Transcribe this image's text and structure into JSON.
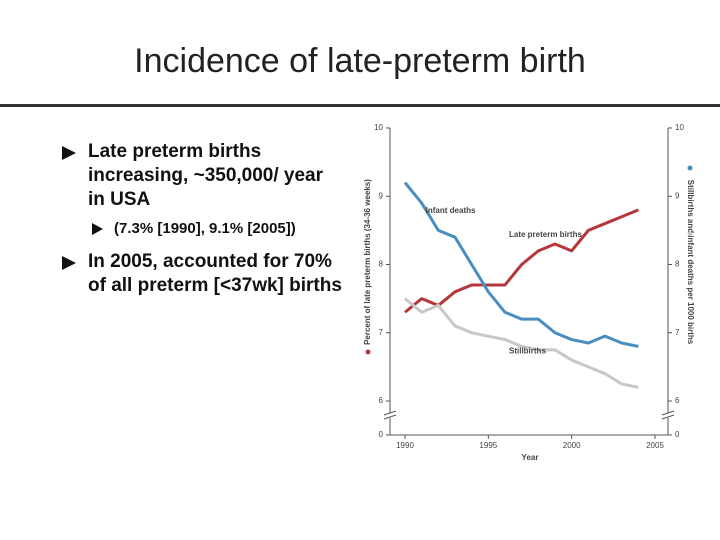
{
  "slide": {
    "title": "Incidence of late-preterm birth",
    "bullets": [
      {
        "text": "Late preterm births increasing, ~350,000/ year in USA",
        "sub": [
          "(7.3% [1990], 9.1% [2005])"
        ]
      },
      {
        "text": "In 2005, accounted for 70% of all preterm [<37wk] births",
        "sub": []
      }
    ]
  },
  "chart_data": {
    "type": "line",
    "xlabel": "Year",
    "ylabel": "Percent of late preterm births (34-36 weeks)",
    "y2label": "Stillbirths and infant deaths per 1000 births",
    "x": [
      1990,
      1991,
      1992,
      1993,
      1994,
      1995,
      1996,
      1997,
      1998,
      1999,
      2000,
      2001,
      2002,
      2003,
      2004
    ],
    "xlim": [
      1990,
      2005
    ],
    "xticks": [
      1990,
      1995,
      2000,
      2005
    ],
    "ylim": [
      6,
      10
    ],
    "yticks": [
      0,
      6,
      7,
      8,
      9,
      10
    ],
    "y2lim": [
      6,
      10
    ],
    "y2ticks": [
      0,
      6,
      7,
      8,
      9,
      10
    ],
    "axis_break": true,
    "series": [
      {
        "name": "Late preterm births",
        "color": "#b5373a",
        "values": [
          7.3,
          7.5,
          7.4,
          7.6,
          7.7,
          7.7,
          7.7,
          8.0,
          8.2,
          8.3,
          8.2,
          8.5,
          8.6,
          8.7,
          8.8
        ]
      },
      {
        "name": "Infant deaths",
        "color": "#4a8ec0",
        "axis": "y2",
        "values": [
          9.2,
          8.9,
          8.5,
          8.4,
          8.0,
          7.6,
          7.3,
          7.2,
          7.2,
          7.0,
          6.9,
          6.85,
          6.95,
          6.85,
          6.8
        ]
      },
      {
        "name": "Stillbirths",
        "color": "#c8c8c8",
        "axis": "y2",
        "values": [
          7.5,
          7.3,
          7.4,
          7.1,
          7.0,
          6.95,
          6.9,
          6.8,
          6.75,
          6.75,
          6.6,
          6.5,
          6.4,
          6.25,
          6.2
        ]
      }
    ]
  }
}
